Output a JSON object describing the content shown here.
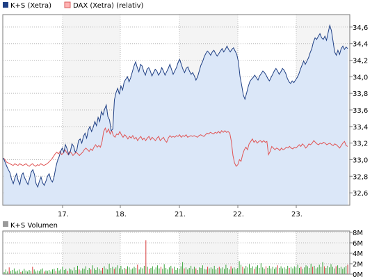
{
  "chart_data": [
    {
      "type": "area",
      "legend": [
        {
          "name": "K+S (Xetra)",
          "color": "#1f3f84"
        },
        {
          "name": "DAX (Xetra) (relativ)",
          "color": "#d85c5c"
        }
      ],
      "x_tick_labels": [
        "17.",
        "18.",
        "21.",
        "22.",
        "23."
      ],
      "y_tick_labels": [
        "32,6",
        "32,8",
        "33,0",
        "33,2",
        "33,4",
        "33,6",
        "33,8",
        "34,0",
        "34,2",
        "34,4",
        "34,6"
      ],
      "ylim": [
        32.45,
        34.75
      ],
      "grid": true,
      "colors": {
        "area_fill": "#dbe7f8",
        "ks_line": "#1f3f84",
        "dax_line": "#e05555",
        "grid": "#b8b8b8"
      },
      "series": [
        {
          "name": "K+S (Xetra)",
          "values": [
            33.02,
            32.97,
            32.92,
            32.88,
            32.84,
            32.76,
            32.71,
            32.78,
            32.83,
            32.75,
            32.7,
            32.81,
            32.84,
            32.78,
            32.74,
            32.7,
            32.77,
            32.85,
            32.88,
            32.82,
            32.71,
            32.67,
            32.74,
            32.79,
            32.72,
            32.69,
            32.74,
            32.8,
            32.83,
            32.76,
            32.73,
            32.79,
            32.9,
            32.98,
            33.03,
            33.1,
            33.14,
            33.09,
            33.18,
            33.13,
            33.06,
            33.1,
            33.19,
            33.16,
            33.09,
            33.12,
            33.23,
            33.25,
            33.2,
            33.28,
            33.32,
            33.26,
            33.36,
            33.4,
            33.34,
            33.39,
            33.46,
            33.41,
            33.51,
            33.46,
            33.58,
            33.54,
            33.61,
            33.66,
            33.52,
            33.48,
            33.35,
            33.37,
            33.72,
            33.81,
            33.86,
            33.79,
            33.89,
            33.84,
            33.94,
            33.97,
            34.0,
            33.94,
            33.99,
            34.06,
            34.13,
            34.18,
            34.11,
            34.06,
            34.15,
            34.13,
            34.06,
            34.02,
            34.09,
            34.11,
            34.07,
            34.01,
            34.05,
            34.09,
            34.07,
            34.02,
            34.05,
            34.11,
            34.07,
            34.02,
            34.06,
            34.1,
            34.15,
            34.09,
            34.03,
            34.07,
            34.11,
            34.17,
            34.21,
            34.15,
            34.09,
            34.05,
            34.1,
            34.12,
            34.07,
            34.03,
            34.05,
            34.01,
            33.96,
            34.0,
            34.07,
            34.14,
            34.18,
            34.24,
            34.28,
            34.31,
            34.29,
            34.26,
            34.3,
            34.32,
            34.28,
            34.25,
            34.28,
            34.31,
            34.34,
            34.3,
            34.33,
            34.37,
            34.33,
            34.3,
            34.33,
            34.35,
            34.31,
            34.27,
            34.18,
            34.0,
            33.9,
            33.78,
            33.73,
            33.8,
            33.88,
            33.94,
            33.97,
            33.99,
            34.02,
            33.99,
            33.96,
            34.01,
            34.04,
            34.07,
            34.05,
            34.02,
            33.98,
            33.95,
            33.99,
            34.03,
            34.07,
            34.1,
            34.07,
            34.03,
            34.06,
            34.1,
            34.08,
            34.04,
            33.98,
            33.94,
            33.92,
            33.95,
            33.93,
            33.96,
            33.99,
            34.03,
            34.09,
            34.14,
            34.19,
            34.15,
            34.19,
            34.23,
            34.29,
            34.34,
            34.42,
            34.47,
            34.45,
            34.49,
            34.52,
            34.47,
            34.45,
            34.49,
            34.44,
            34.53,
            34.62,
            34.56,
            34.43,
            34.3,
            34.26,
            34.32,
            34.27,
            34.34,
            34.37,
            34.33,
            34.36,
            34.34
          ]
        },
        {
          "name": "DAX (Xetra) (relativ)",
          "values": [
            33.02,
            33.0,
            32.97,
            32.96,
            32.95,
            32.94,
            32.93,
            32.95,
            32.94,
            32.93,
            32.95,
            32.94,
            32.93,
            32.94,
            32.95,
            32.93,
            32.92,
            32.94,
            32.95,
            32.93,
            32.92,
            32.94,
            32.93,
            32.95,
            32.94,
            32.93,
            32.94,
            32.95,
            32.97,
            32.99,
            33.01,
            33.04,
            33.07,
            33.09,
            33.07,
            33.1,
            33.06,
            33.08,
            33.12,
            33.09,
            33.06,
            33.1,
            33.08,
            33.05,
            33.07,
            33.09,
            33.07,
            33.05,
            33.07,
            33.09,
            33.12,
            33.14,
            33.12,
            33.1,
            33.13,
            33.11,
            33.15,
            33.18,
            33.15,
            33.17,
            33.15,
            33.22,
            33.34,
            33.38,
            33.33,
            33.37,
            33.31,
            33.35,
            33.29,
            33.27,
            33.31,
            33.3,
            33.34,
            33.3,
            33.27,
            33.3,
            33.28,
            33.25,
            33.28,
            33.26,
            33.29,
            33.25,
            33.27,
            33.23,
            33.26,
            33.28,
            33.24,
            33.26,
            33.23,
            33.26,
            33.28,
            33.24,
            33.27,
            33.25,
            33.23,
            33.26,
            33.28,
            33.23,
            33.25,
            33.27,
            33.23,
            33.21,
            33.26,
            33.29,
            33.27,
            33.28,
            33.27,
            33.29,
            33.28,
            33.3,
            33.27,
            33.29,
            33.28,
            33.3,
            33.27,
            33.28,
            33.29,
            33.28,
            33.29,
            33.28,
            33.27,
            33.29,
            33.3,
            33.29,
            33.28,
            33.3,
            33.32,
            33.31,
            33.33,
            33.32,
            33.31,
            33.33,
            33.32,
            33.34,
            33.32,
            33.35,
            33.33,
            33.35,
            33.33,
            33.34,
            33.32,
            33.22,
            33.05,
            32.96,
            32.92,
            32.94,
            33.0,
            32.98,
            33.06,
            33.12,
            33.15,
            33.12,
            33.19,
            33.22,
            33.25,
            33.21,
            33.23,
            33.2,
            33.22,
            33.23,
            33.21,
            33.23,
            33.21,
            33.22,
            33.06,
            33.1,
            33.16,
            33.14,
            33.12,
            33.14,
            33.13,
            33.11,
            33.14,
            33.12,
            33.13,
            33.15,
            33.14,
            33.16,
            33.14,
            33.13,
            33.15,
            33.14,
            33.16,
            33.18,
            33.16,
            33.19,
            33.17,
            33.14,
            33.16,
            33.19,
            33.18,
            33.2,
            33.23,
            33.21,
            33.19,
            33.18,
            33.2,
            33.19,
            33.21,
            33.2,
            33.18,
            33.19,
            33.2,
            33.18,
            33.17,
            33.19,
            33.18,
            33.16,
            33.14,
            33.17,
            33.2,
            33.22,
            33.17,
            33.16
          ]
        }
      ]
    },
    {
      "type": "bar",
      "legend": [
        {
          "name": "K+S Volumen",
          "color": "#9a9a9a"
        }
      ],
      "y_tick_labels": [
        "0M",
        "2M",
        "4M",
        "6M",
        "8M"
      ],
      "ylim": [
        0,
        8
      ],
      "grid": true,
      "colors": {
        "bar": "#3aa33a",
        "spike": "#d83b3b"
      },
      "series": [
        {
          "name": "K+S Volumen",
          "values": [
            0.4,
            0.9,
            0.5,
            1.3,
            0.6,
            0.8,
            1.1,
            0.5,
            0.7,
            0.9,
            0.4,
            0.6,
            1.0,
            0.7,
            0.5,
            0.8,
            0.6,
            1.4,
            0.9,
            0.5,
            0.7,
            0.6,
            0.9,
            1.1,
            0.5,
            0.7,
            0.6,
            0.8,
            0.5,
            0.9,
            1.0,
            0.6,
            1.2,
            0.7,
            0.9,
            1.4,
            0.8,
            1.0,
            0.6,
            1.1,
            0.9,
            0.7,
            1.3,
            0.8,
            1.6,
            0.9,
            0.7,
            1.1,
            1.0,
            1.5,
            0.8,
            1.2,
            0.9,
            1.7,
            1.1,
            0.8,
            1.3,
            1.0,
            0.7,
            1.2,
            1.5,
            1.1,
            0.9,
            2.0,
            1.2,
            1.4,
            1.0,
            1.3,
            1.7,
            1.1,
            1.6,
            0.9,
            1.2,
            1.0,
            1.5,
            1.3,
            0.9,
            1.1,
            1.4,
            1.2,
            1.8,
            0.9,
            1.3,
            1.1,
            1.6,
            6.5,
            1.4,
            1.0,
            1.2,
            1.5,
            0.9,
            1.3,
            1.7,
            1.1,
            1.4,
            1.0,
            1.9,
            1.2,
            0.9,
            1.3,
            1.6,
            1.1,
            1.4,
            0.8,
            1.2,
            1.0,
            1.5,
            2.3,
            1.1,
            1.3,
            0.9,
            1.2,
            1.6,
            1.0,
            1.4,
            1.1,
            0.8,
            1.3,
            1.2,
            1.7,
            1.0,
            0.9,
            1.4,
            1.1,
            1.3,
            1.0,
            1.6,
            0.9,
            1.2,
            1.4,
            1.1,
            1.3,
            1.0,
            1.8,
            1.2,
            0.9,
            1.5,
            1.1,
            1.3,
            1.0,
            1.2,
            2.5,
            1.8,
            1.4,
            1.1,
            1.6,
            1.3,
            1.9,
            1.2,
            1.5,
            1.0,
            1.4,
            1.7,
            1.2,
            2.1,
            1.3,
            1.0,
            1.5,
            1.2,
            1.6,
            1.1,
            1.4,
            1.0,
            1.3,
            1.7,
            1.2,
            1.5,
            1.1,
            1.3,
            1.0,
            1.6,
            1.2,
            1.4,
            1.1,
            1.5,
            1.3,
            1.8,
            1.2,
            1.4,
            1.0,
            1.3,
            1.7,
            1.5,
            1.2,
            2.0,
            1.4,
            1.6,
            1.1,
            1.3,
            1.8,
            1.4,
            2.3,
            1.5,
            1.2,
            1.6,
            1.3,
            1.9,
            1.4,
            1.1,
            1.5,
            1.7,
            1.2,
            1.4,
            1.0,
            1.3,
            1.6,
            1.8
          ]
        }
      ]
    }
  ]
}
